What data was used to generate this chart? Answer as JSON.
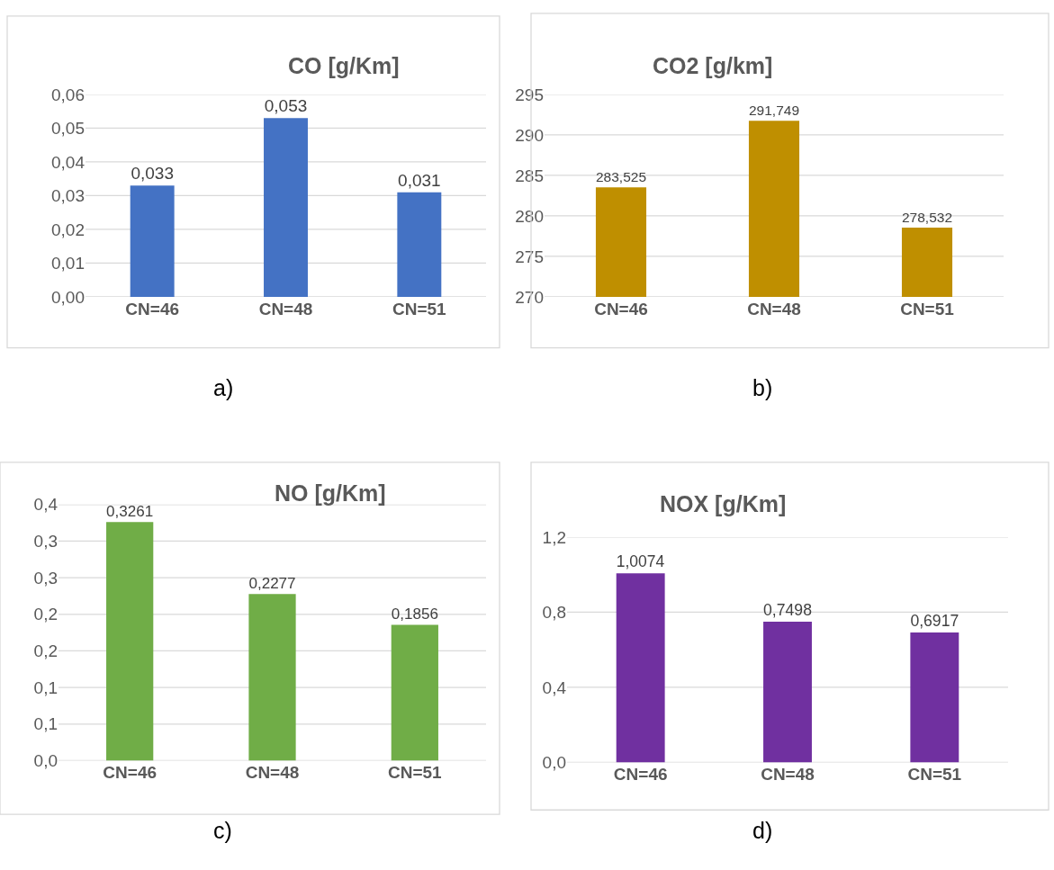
{
  "chart_data": [
    {
      "type": "bar",
      "title": "CO [g/Km]",
      "categories": [
        "CN=46",
        "CN=48",
        "CN=51"
      ],
      "values": [
        0.033,
        0.053,
        0.031
      ],
      "color": "#4472c4",
      "value_labels": [
        "0,033",
        "0,053",
        "0,031"
      ],
      "ylim": [
        0,
        0.06
      ],
      "yticks": [
        {
          "value": 0,
          "label": "0,00"
        },
        {
          "value": 0.01,
          "label": "0,01"
        },
        {
          "value": 0.02,
          "label": "0,02"
        },
        {
          "value": 0.03,
          "label": "0,03"
        },
        {
          "value": 0.04,
          "label": "0,04"
        },
        {
          "value": 0.05,
          "label": "0,05"
        },
        {
          "value": 0.06,
          "label": "0,06"
        }
      ],
      "grid": "y",
      "annotations": [
        "a)"
      ]
    },
    {
      "type": "bar",
      "title": "CO2 [g/km]",
      "categories": [
        "CN=46",
        "CN=48",
        "CN=51"
      ],
      "values": [
        283.525,
        291.749,
        278.532
      ],
      "color": "#bf8f00",
      "value_labels": [
        "283,525",
        "291,749",
        "278,532"
      ],
      "ylim": [
        270,
        295
      ],
      "yticks": [
        270,
        275,
        280,
        285,
        290,
        295
      ],
      "grid": "y",
      "annotations": [
        "b)"
      ]
    },
    {
      "type": "bar",
      "title": "NO [g/Km]",
      "categories": [
        "CN=46",
        "CN=48",
        "CN=51"
      ],
      "values": [
        0.3261,
        0.2277,
        0.1856
      ],
      "color": "#70ad47",
      "value_labels": [
        "0,3261",
        "0,2277",
        "0,1856"
      ],
      "ylim": [
        0,
        0.35
      ],
      "yticks": [
        {
          "value": 0,
          "label": "0,0"
        },
        {
          "value": 0.05,
          "label": "0,1"
        },
        {
          "value": 0.1,
          "label": "0,1"
        },
        {
          "value": 0.15,
          "label": "0,2"
        },
        {
          "value": 0.2,
          "label": "0,2"
        },
        {
          "value": 0.25,
          "label": "0,3"
        },
        {
          "value": 0.3,
          "label": "0,3"
        },
        {
          "value": 0.35,
          "label": "0,4"
        }
      ],
      "grid": "y",
      "annotations": [
        "c)"
      ]
    },
    {
      "type": "bar",
      "title": "NOX [g/Km]",
      "categories": [
        "CN=46",
        "CN=48",
        "CN=51"
      ],
      "values": [
        1.0074,
        0.7498,
        0.6917
      ],
      "color": "#7030a0",
      "value_labels": [
        "1,0074",
        "0,7498",
        "0,6917"
      ],
      "ylim": [
        0,
        1.2
      ],
      "yticks": [
        {
          "value": 0,
          "label": "0,0"
        },
        {
          "value": 0.4,
          "label": "0,4"
        },
        {
          "value": 0.8,
          "label": "0,8"
        },
        {
          "value": 1.2,
          "label": "1,2"
        }
      ],
      "grid": "y",
      "annotations": [
        "d)"
      ]
    }
  ]
}
